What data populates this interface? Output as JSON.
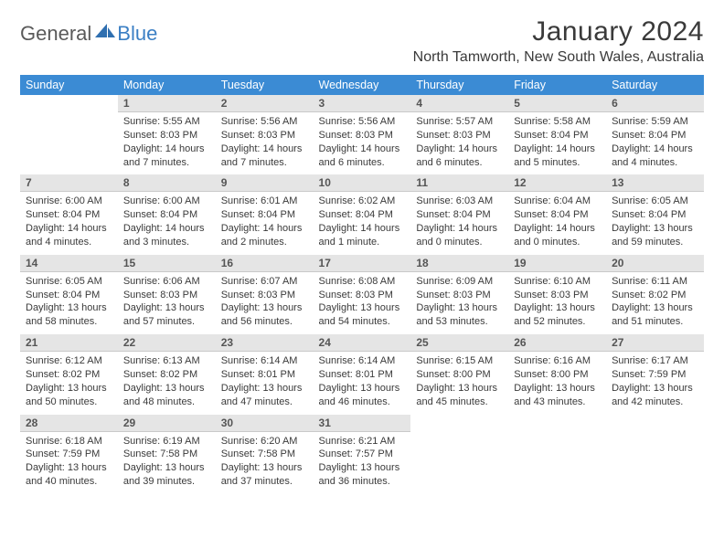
{
  "logo": {
    "part1": "General",
    "part2": "Blue"
  },
  "title": "January 2024",
  "location": "North Tamworth, New South Wales, Australia",
  "colors": {
    "header_bg": "#3b8bd4",
    "header_text": "#ffffff",
    "daynum_bg": "#e5e5e5",
    "daynum_text": "#555555",
    "body_text": "#3a3a3a",
    "logo_gray": "#5a5a5a",
    "logo_blue": "#3b7fc4"
  },
  "weekdays": [
    "Sunday",
    "Monday",
    "Tuesday",
    "Wednesday",
    "Thursday",
    "Friday",
    "Saturday"
  ],
  "start_offset": 1,
  "days": [
    {
      "n": 1,
      "sunrise": "5:55 AM",
      "sunset": "8:03 PM",
      "daylight": "14 hours and 7 minutes."
    },
    {
      "n": 2,
      "sunrise": "5:56 AM",
      "sunset": "8:03 PM",
      "daylight": "14 hours and 7 minutes."
    },
    {
      "n": 3,
      "sunrise": "5:56 AM",
      "sunset": "8:03 PM",
      "daylight": "14 hours and 6 minutes."
    },
    {
      "n": 4,
      "sunrise": "5:57 AM",
      "sunset": "8:03 PM",
      "daylight": "14 hours and 6 minutes."
    },
    {
      "n": 5,
      "sunrise": "5:58 AM",
      "sunset": "8:04 PM",
      "daylight": "14 hours and 5 minutes."
    },
    {
      "n": 6,
      "sunrise": "5:59 AM",
      "sunset": "8:04 PM",
      "daylight": "14 hours and 4 minutes."
    },
    {
      "n": 7,
      "sunrise": "6:00 AM",
      "sunset": "8:04 PM",
      "daylight": "14 hours and 4 minutes."
    },
    {
      "n": 8,
      "sunrise": "6:00 AM",
      "sunset": "8:04 PM",
      "daylight": "14 hours and 3 minutes."
    },
    {
      "n": 9,
      "sunrise": "6:01 AM",
      "sunset": "8:04 PM",
      "daylight": "14 hours and 2 minutes."
    },
    {
      "n": 10,
      "sunrise": "6:02 AM",
      "sunset": "8:04 PM",
      "daylight": "14 hours and 1 minute."
    },
    {
      "n": 11,
      "sunrise": "6:03 AM",
      "sunset": "8:04 PM",
      "daylight": "14 hours and 0 minutes."
    },
    {
      "n": 12,
      "sunrise": "6:04 AM",
      "sunset": "8:04 PM",
      "daylight": "14 hours and 0 minutes."
    },
    {
      "n": 13,
      "sunrise": "6:05 AM",
      "sunset": "8:04 PM",
      "daylight": "13 hours and 59 minutes."
    },
    {
      "n": 14,
      "sunrise": "6:05 AM",
      "sunset": "8:04 PM",
      "daylight": "13 hours and 58 minutes."
    },
    {
      "n": 15,
      "sunrise": "6:06 AM",
      "sunset": "8:03 PM",
      "daylight": "13 hours and 57 minutes."
    },
    {
      "n": 16,
      "sunrise": "6:07 AM",
      "sunset": "8:03 PM",
      "daylight": "13 hours and 56 minutes."
    },
    {
      "n": 17,
      "sunrise": "6:08 AM",
      "sunset": "8:03 PM",
      "daylight": "13 hours and 54 minutes."
    },
    {
      "n": 18,
      "sunrise": "6:09 AM",
      "sunset": "8:03 PM",
      "daylight": "13 hours and 53 minutes."
    },
    {
      "n": 19,
      "sunrise": "6:10 AM",
      "sunset": "8:03 PM",
      "daylight": "13 hours and 52 minutes."
    },
    {
      "n": 20,
      "sunrise": "6:11 AM",
      "sunset": "8:02 PM",
      "daylight": "13 hours and 51 minutes."
    },
    {
      "n": 21,
      "sunrise": "6:12 AM",
      "sunset": "8:02 PM",
      "daylight": "13 hours and 50 minutes."
    },
    {
      "n": 22,
      "sunrise": "6:13 AM",
      "sunset": "8:02 PM",
      "daylight": "13 hours and 48 minutes."
    },
    {
      "n": 23,
      "sunrise": "6:14 AM",
      "sunset": "8:01 PM",
      "daylight": "13 hours and 47 minutes."
    },
    {
      "n": 24,
      "sunrise": "6:14 AM",
      "sunset": "8:01 PM",
      "daylight": "13 hours and 46 minutes."
    },
    {
      "n": 25,
      "sunrise": "6:15 AM",
      "sunset": "8:00 PM",
      "daylight": "13 hours and 45 minutes."
    },
    {
      "n": 26,
      "sunrise": "6:16 AM",
      "sunset": "8:00 PM",
      "daylight": "13 hours and 43 minutes."
    },
    {
      "n": 27,
      "sunrise": "6:17 AM",
      "sunset": "7:59 PM",
      "daylight": "13 hours and 42 minutes."
    },
    {
      "n": 28,
      "sunrise": "6:18 AM",
      "sunset": "7:59 PM",
      "daylight": "13 hours and 40 minutes."
    },
    {
      "n": 29,
      "sunrise": "6:19 AM",
      "sunset": "7:58 PM",
      "daylight": "13 hours and 39 minutes."
    },
    {
      "n": 30,
      "sunrise": "6:20 AM",
      "sunset": "7:58 PM",
      "daylight": "13 hours and 37 minutes."
    },
    {
      "n": 31,
      "sunrise": "6:21 AM",
      "sunset": "7:57 PM",
      "daylight": "13 hours and 36 minutes."
    }
  ],
  "labels": {
    "sunrise": "Sunrise:",
    "sunset": "Sunset:",
    "daylight": "Daylight:"
  }
}
